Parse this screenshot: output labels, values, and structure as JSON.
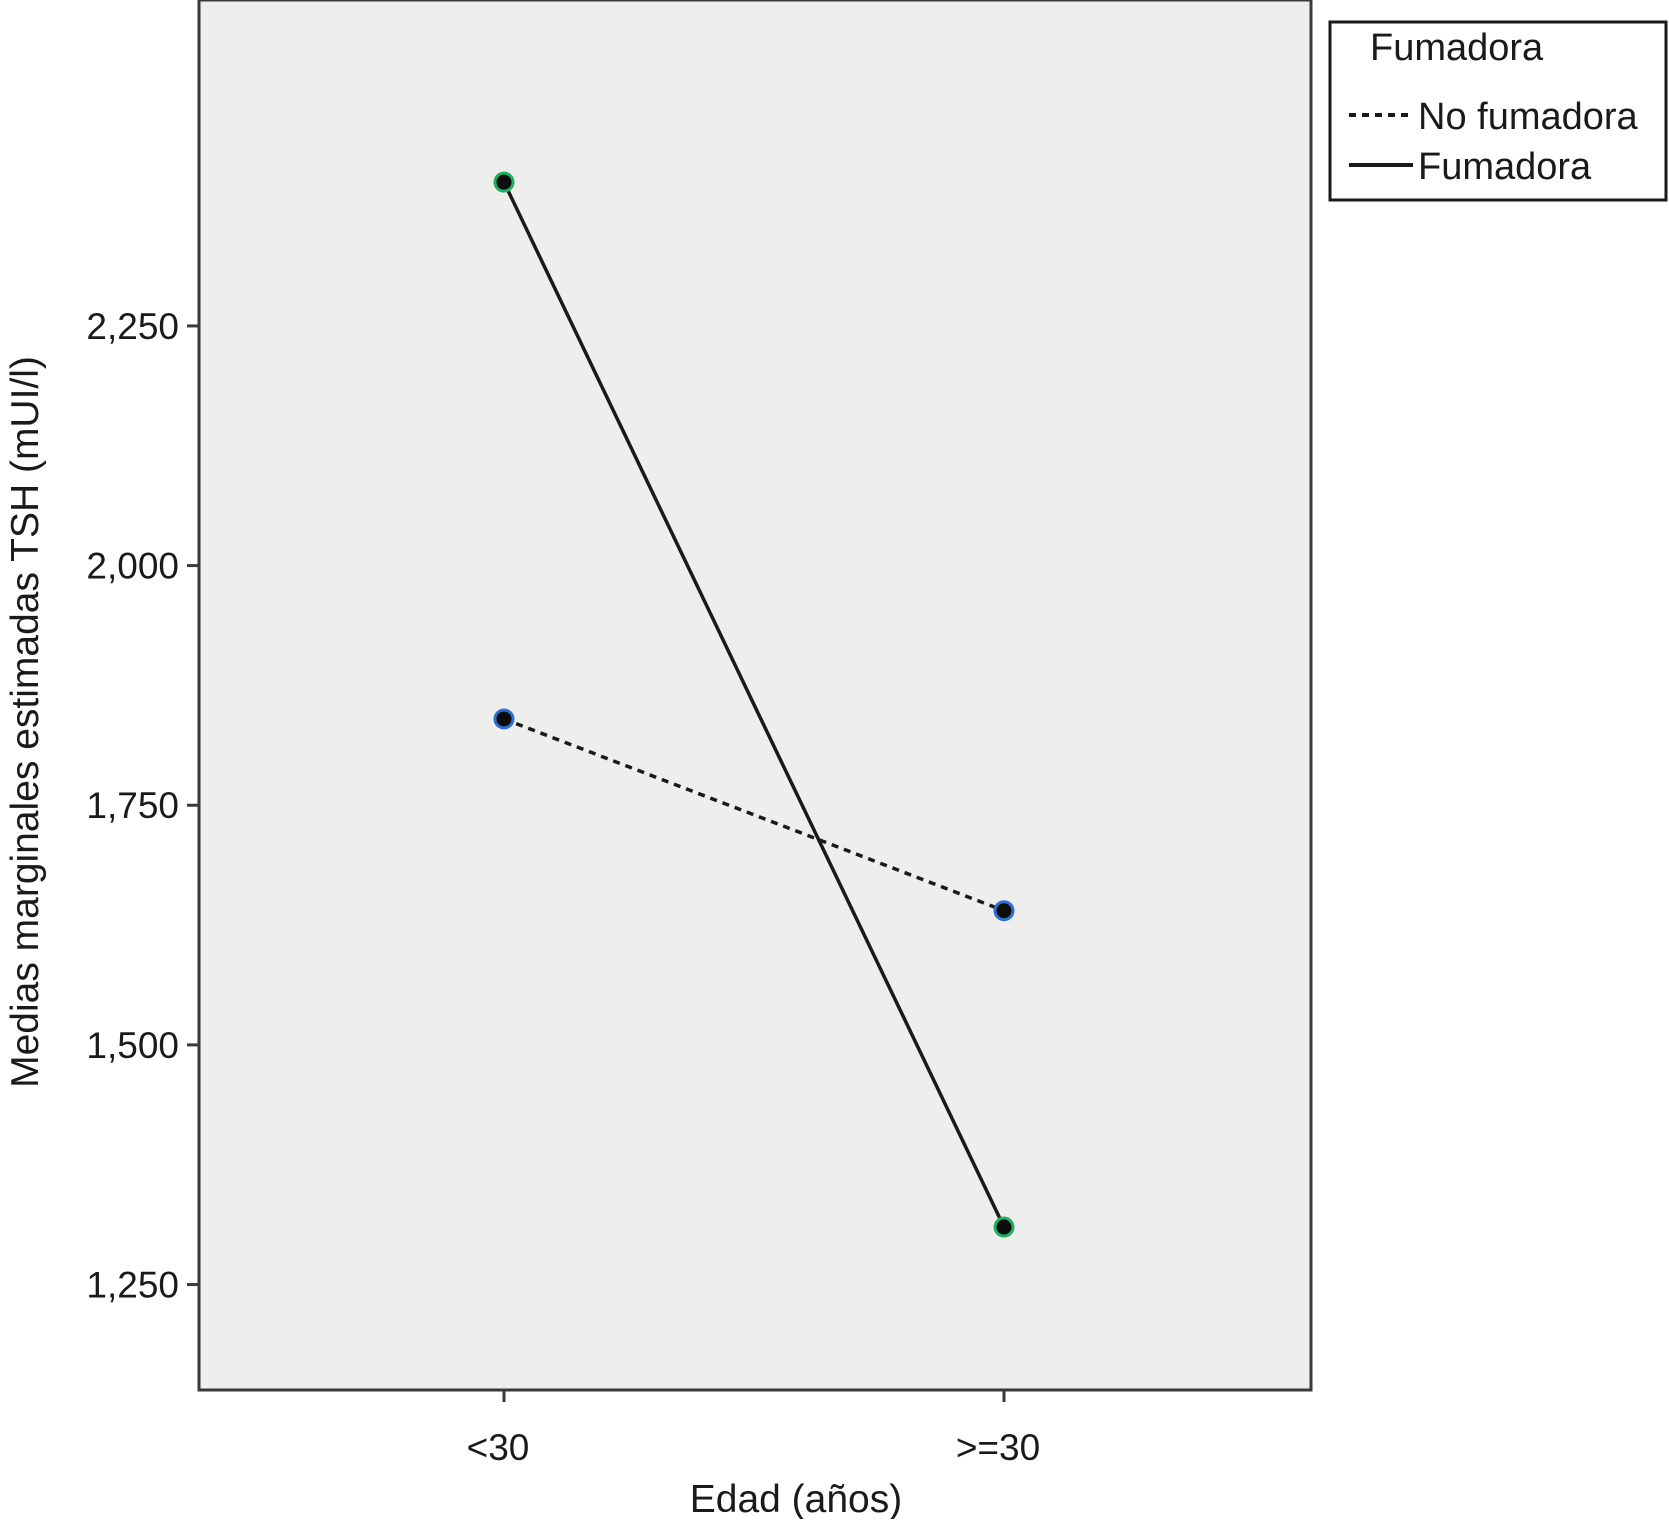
{
  "chart_data": {
    "type": "line",
    "title": "",
    "xlabel": "Edad (años)",
    "ylabel": "Medias marginales estimadas TSH (mUI/l)",
    "categories": [
      "<30",
      ">=30"
    ],
    "ylim": [
      1.14,
      2.59
    ],
    "yticks": [
      1.25,
      1.5,
      1.75,
      2.0,
      2.25
    ],
    "ytick_labels": [
      "1,250",
      "1,500",
      "1,750",
      "2,000",
      "2,250"
    ],
    "grid": false,
    "background": "#eeeeec",
    "legend": {
      "title": "Fumadora",
      "placement": "top-right outside"
    },
    "series": [
      {
        "name": "No fumadora",
        "values": [
          1.84,
          1.64
        ],
        "line_style": "dashed",
        "color": "#1a1a1a",
        "marker_ring": "#2f6fd1"
      },
      {
        "name": "Fumadora",
        "values": [
          2.4,
          1.31
        ],
        "line_style": "solid",
        "color": "#1a1a1a",
        "marker_ring": "#1fb060"
      }
    ]
  }
}
